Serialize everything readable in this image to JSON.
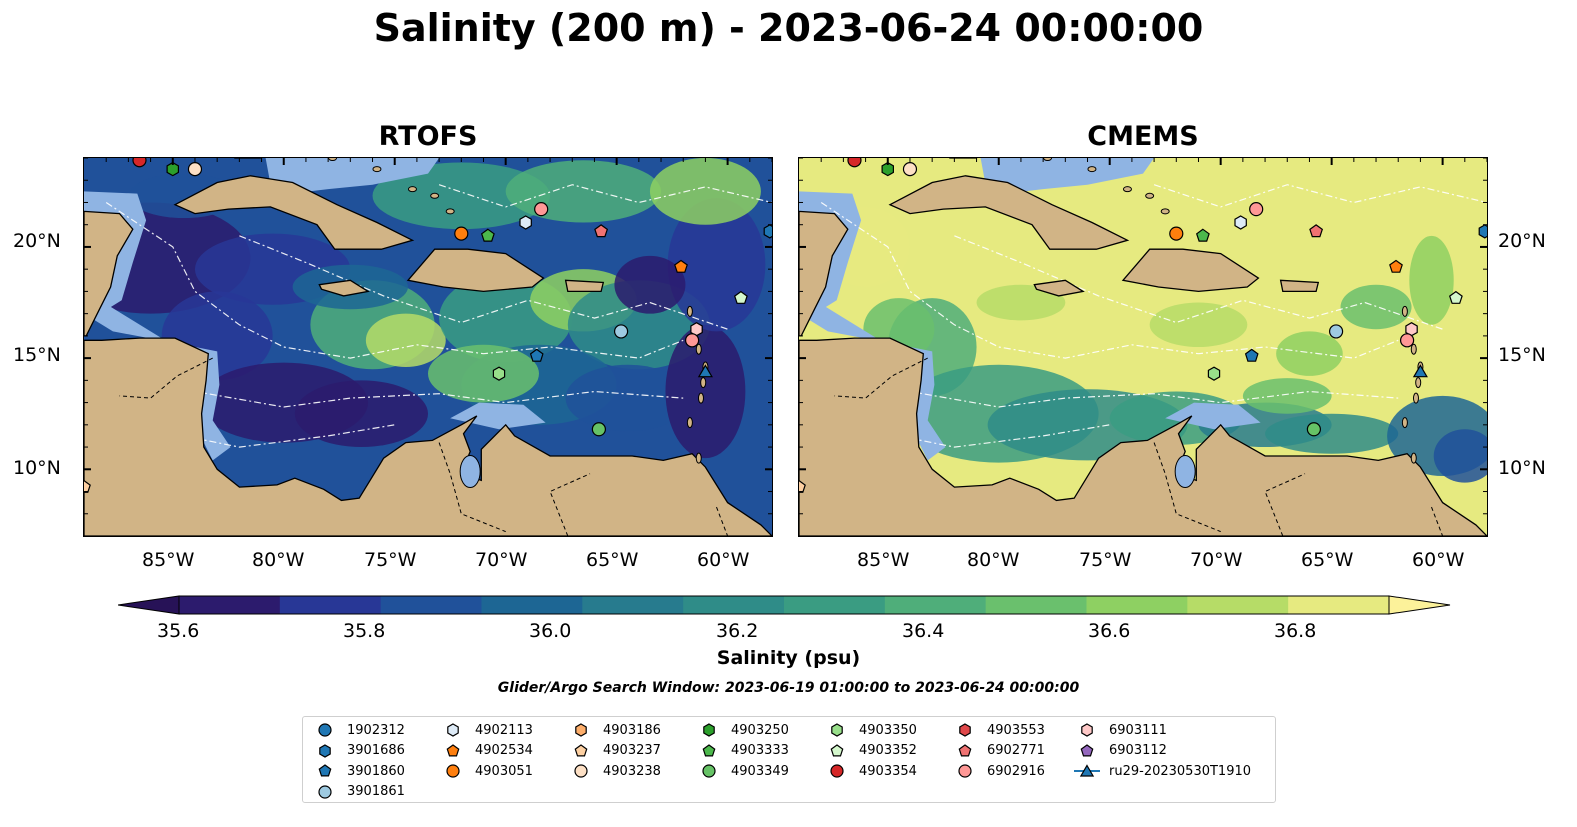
{
  "title": "Salinity (200 m) - 2023-06-24 00:00:00",
  "panels": [
    {
      "name": "RTOFS",
      "palette": "rtofs"
    },
    {
      "name": "CMEMS",
      "palette": "cmems"
    }
  ],
  "axes": {
    "lon_ticks": [
      "85°W",
      "80°W",
      "75°W",
      "70°W",
      "65°W",
      "60°W"
    ],
    "lat_ticks": [
      "20°N",
      "15°N",
      "10°N"
    ],
    "lon_range": [
      -89,
      -58
    ],
    "lat_range": [
      7,
      24
    ]
  },
  "colorbar": {
    "title": "Salinity (psu)",
    "ticks": [
      "35.6",
      "35.8",
      "36.0",
      "36.2",
      "36.4",
      "36.6",
      "36.8"
    ],
    "colors": [
      "#2c1b6d",
      "#283796",
      "#20519a",
      "#1d6694",
      "#277b8e",
      "#2f8c88",
      "#3a9c82",
      "#4fae7a",
      "#6ac06d",
      "#8ed062",
      "#b6dc67",
      "#e6ea80"
    ],
    "extend_low": "#271257",
    "extend_high": "#fcf29a"
  },
  "search_window": "Glider/Argo Search Window: 2023-06-19 01:00:00 to 2023-06-24 00:00:00",
  "legend": [
    {
      "label": "1902312",
      "marker": "circle",
      "color": "#1f77b4"
    },
    {
      "label": "3901686",
      "marker": "hexagon",
      "color": "#1f77b4"
    },
    {
      "label": "3901860",
      "marker": "pentagon",
      "color": "#1f77b4"
    },
    {
      "label": "3901861",
      "marker": "circle",
      "color": "#9ecae1"
    },
    {
      "label": "4902113",
      "marker": "hexagon",
      "color": "#deebf7"
    },
    {
      "label": "4902534",
      "marker": "pentagon",
      "color": "#ff7f0e"
    },
    {
      "label": "4903051",
      "marker": "circle",
      "color": "#ff7f0e"
    },
    {
      "label": "4903186",
      "marker": "hexagon",
      "color": "#fdae6b"
    },
    {
      "label": "4903237",
      "marker": "pentagon",
      "color": "#fdd0a2"
    },
    {
      "label": "4903238",
      "marker": "circle",
      "color": "#fde0c5"
    },
    {
      "label": "4903250",
      "marker": "hexagon",
      "color": "#2ca02c"
    },
    {
      "label": "4903333",
      "marker": "pentagon",
      "color": "#4cb84c"
    },
    {
      "label": "4903349",
      "marker": "circle",
      "color": "#66c266"
    },
    {
      "label": "4903350",
      "marker": "hexagon",
      "color": "#98df8a"
    },
    {
      "label": "4903352",
      "marker": "pentagon",
      "color": "#d4f7cc"
    },
    {
      "label": "4903354",
      "marker": "circle",
      "color": "#d62728"
    },
    {
      "label": "4903553",
      "marker": "hexagon",
      "color": "#e0484a"
    },
    {
      "label": "6902771",
      "marker": "pentagon",
      "color": "#f07272"
    },
    {
      "label": "6902916",
      "marker": "circle",
      "color": "#ff9896"
    },
    {
      "label": "6903111",
      "marker": "hexagon",
      "color": "#ffc9c8"
    },
    {
      "label": "6903112",
      "marker": "pentagon",
      "color": "#9467bd"
    },
    {
      "label": "ru29-20230530T1910",
      "marker": "triangle-line",
      "color": "#1f77b4"
    }
  ],
  "observations": [
    {
      "id": "4903354",
      "lon": -86.5,
      "lat": 23.9
    },
    {
      "id": "4903250",
      "lon": -85.0,
      "lat": 23.5
    },
    {
      "id": "4903238",
      "lon": -84.0,
      "lat": 23.5
    },
    {
      "id": "4903051",
      "lon": -72.0,
      "lat": 20.6
    },
    {
      "id": "4903333",
      "lon": -70.8,
      "lat": 20.5
    },
    {
      "id": "4902113",
      "lon": -69.1,
      "lat": 21.1
    },
    {
      "id": "6902916",
      "lon": -68.4,
      "lat": 21.7
    },
    {
      "id": "6902771",
      "lon": -65.7,
      "lat": 20.7
    },
    {
      "id": "4902534",
      "lon": -62.1,
      "lat": 19.1
    },
    {
      "id": "3901686",
      "lon": -58.1,
      "lat": 20.7
    },
    {
      "id": "4903352",
      "lon": -59.4,
      "lat": 17.7
    },
    {
      "id": "3901861",
      "lon": -64.8,
      "lat": 16.2
    },
    {
      "id": "6903111",
      "lon": -61.4,
      "lat": 16.3
    },
    {
      "id": "6902916",
      "lon": -61.6,
      "lat": 15.8
    },
    {
      "id": "3901860",
      "lon": -68.6,
      "lat": 15.1
    },
    {
      "id": "4903350",
      "lon": -70.3,
      "lat": 14.3
    },
    {
      "id": "ru29-20230530T1910",
      "lon": -61.0,
      "lat": 14.4
    },
    {
      "id": "4903349",
      "lon": -65.8,
      "lat": 11.8
    },
    {
      "id": "4903237",
      "lon": -89.0,
      "lat": 9.2
    }
  ]
}
